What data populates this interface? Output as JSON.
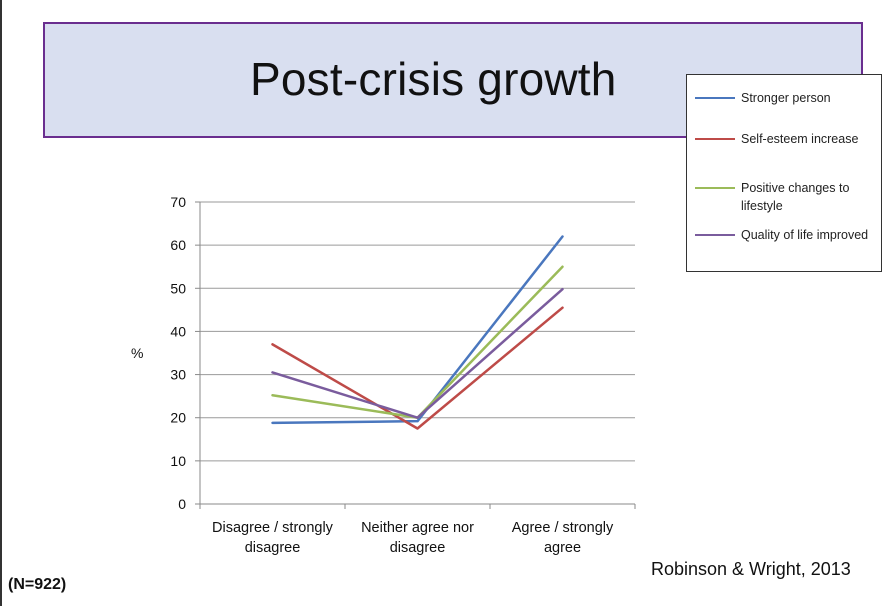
{
  "title": "Post-crisis growth",
  "footer": {
    "sample_size": "(N=922)",
    "citation": "Robinson & Wright, 2013"
  },
  "colors": {
    "title_bg": "#d9dff0",
    "title_border": "#6a2e8f",
    "grid": "#9a9a9a"
  },
  "chart_data": {
    "type": "line",
    "title": "",
    "xlabel": "",
    "ylabel": "%",
    "ylim": [
      0,
      70
    ],
    "yticks": [
      0,
      10,
      20,
      30,
      40,
      50,
      60,
      70
    ],
    "grid": true,
    "legend_position": "top-right",
    "categories": [
      [
        "Disagree / strongly",
        "disagree"
      ],
      [
        "Neither agree nor",
        "disagree"
      ],
      [
        "Agree / strongly",
        "agree"
      ]
    ],
    "series": [
      {
        "name": "Stronger person",
        "color": "#4a77be",
        "values": [
          18.8,
          19.2,
          62
        ]
      },
      {
        "name": "Self-esteem increase",
        "color": "#be4b48",
        "values": [
          37,
          17.5,
          45.5
        ]
      },
      {
        "name": "Positive changes to lifestyle",
        "color": "#9bbb59",
        "values": [
          25.2,
          20,
          55
        ]
      },
      {
        "name": "Quality of life improved",
        "color": "#7a5c9d",
        "values": [
          30.5,
          20,
          49.8
        ]
      }
    ]
  }
}
